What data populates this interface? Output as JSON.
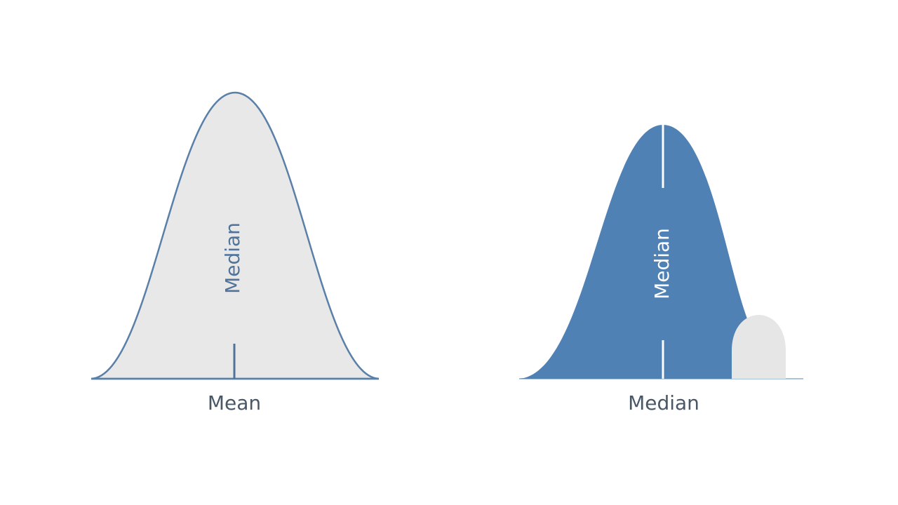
{
  "panels": [
    {
      "label": "Mean",
      "inner_label": "Median"
    },
    {
      "label": "Median",
      "inner_label": "Median"
    }
  ]
}
